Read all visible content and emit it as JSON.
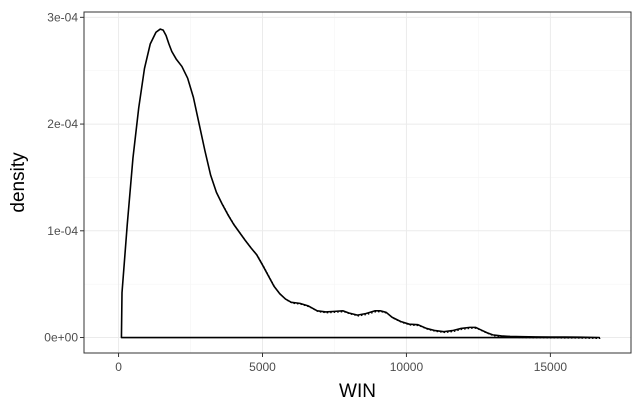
{
  "chart_data": {
    "type": "area",
    "title": "",
    "xlabel": "WIN",
    "ylabel": "density",
    "xlim": [
      -1200,
      17800
    ],
    "ylim": [
      -1.45e-05,
      0.000305
    ],
    "x_ticks": [
      0,
      5000,
      10000,
      15000
    ],
    "x_tick_labels": [
      "0",
      "5000",
      "10000",
      "15000"
    ],
    "y_ticks": [
      0,
      0.0001,
      0.0002,
      0.0003
    ],
    "y_tick_labels": [
      "0e+00",
      "1e-04",
      "2e-04",
      "3e-04"
    ],
    "grid": true,
    "series": [
      {
        "x": [
          100,
          120,
          300,
          500,
          700,
          900,
          1100,
          1300,
          1450,
          1550,
          1650,
          1750,
          1850,
          2000,
          2200,
          2400,
          2600,
          2800,
          3000,
          3200,
          3400,
          3600,
          3800,
          4000,
          4200,
          4400,
          4600,
          4800,
          5000,
          5200,
          5400,
          5600,
          5800,
          6000,
          6300,
          6600,
          6900,
          7200,
          7500,
          7800,
          8000,
          8300,
          8600,
          8900,
          9100,
          9300,
          9500,
          9800,
          10100,
          10400,
          10700,
          11000,
          11300,
          11600,
          11900,
          12200,
          12400,
          12600,
          12800,
          13000,
          13300,
          13600,
          14000,
          14500,
          15000,
          15500,
          16000,
          16700
        ],
        "y": [
          0.0,
          4.2e-05,
          0.000105,
          0.000168,
          0.000215,
          0.000252,
          0.000275,
          0.000286,
          0.000289,
          0.000288,
          0.000283,
          0.000275,
          0.000268,
          0.000261,
          0.000254,
          0.000243,
          0.000225,
          0.0002,
          0.000175,
          0.000152,
          0.000136,
          0.000125,
          0.000115,
          0.000106,
          9.85e-05,
          9.1e-05,
          8.4e-05,
          7.75e-05,
          6.8e-05,
          5.8e-05,
          4.8e-05,
          4.1e-05,
          3.6e-05,
          3.3e-05,
          3.2e-05,
          2.95e-05,
          2.5e-05,
          2.4e-05,
          2.45e-05,
          2.5e-05,
          2.3e-05,
          2.1e-05,
          2.25e-05,
          2.5e-05,
          2.5e-05,
          2.35e-05,
          1.9e-05,
          1.5e-05,
          1.25e-05,
          1.2e-05,
          8.5e-06,
          6.5e-06,
          5.5e-06,
          6.5e-06,
          8.5e-06,
          9.5e-06,
          9.5e-06,
          7e-06,
          4.5e-06,
          2.5e-06,
          1.5e-06,
          1e-06,
          8e-07,
          6e-07,
          5e-07,
          4e-07,
          3e-07,
          0.0
        ]
      }
    ]
  }
}
